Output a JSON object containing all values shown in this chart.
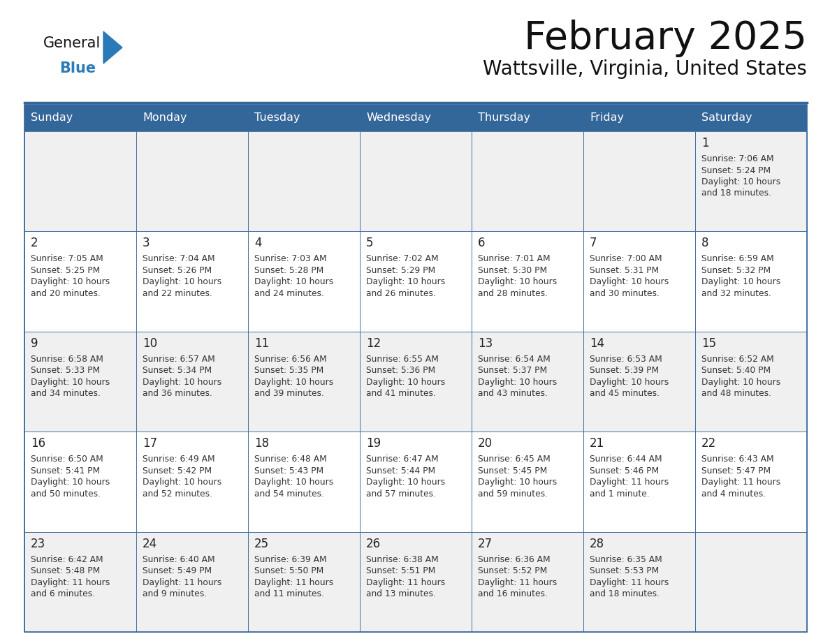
{
  "title": "February 2025",
  "subtitle": "Wattsville, Virginia, United States",
  "days_of_week": [
    "Sunday",
    "Monday",
    "Tuesday",
    "Wednesday",
    "Thursday",
    "Friday",
    "Saturday"
  ],
  "header_bg": "#336699",
  "header_text": "#ffffff",
  "row_bg_odd": "#f0f0f0",
  "row_bg_even": "#ffffff",
  "cell_border": "#336699",
  "day_number_color": "#222222",
  "info_text_color": "#333333",
  "title_color": "#111111",
  "subtitle_color": "#111111",
  "logo_general_color": "#111111",
  "logo_blue_color": "#2a7ab8",
  "weeks": [
    [
      {
        "num": "",
        "lines": []
      },
      {
        "num": "",
        "lines": []
      },
      {
        "num": "",
        "lines": []
      },
      {
        "num": "",
        "lines": []
      },
      {
        "num": "",
        "lines": []
      },
      {
        "num": "",
        "lines": []
      },
      {
        "num": "1",
        "lines": [
          "Sunrise: 7:06 AM",
          "Sunset: 5:24 PM",
          "Daylight: 10 hours",
          "and 18 minutes."
        ]
      }
    ],
    [
      {
        "num": "2",
        "lines": [
          "Sunrise: 7:05 AM",
          "Sunset: 5:25 PM",
          "Daylight: 10 hours",
          "and 20 minutes."
        ]
      },
      {
        "num": "3",
        "lines": [
          "Sunrise: 7:04 AM",
          "Sunset: 5:26 PM",
          "Daylight: 10 hours",
          "and 22 minutes."
        ]
      },
      {
        "num": "4",
        "lines": [
          "Sunrise: 7:03 AM",
          "Sunset: 5:28 PM",
          "Daylight: 10 hours",
          "and 24 minutes."
        ]
      },
      {
        "num": "5",
        "lines": [
          "Sunrise: 7:02 AM",
          "Sunset: 5:29 PM",
          "Daylight: 10 hours",
          "and 26 minutes."
        ]
      },
      {
        "num": "6",
        "lines": [
          "Sunrise: 7:01 AM",
          "Sunset: 5:30 PM",
          "Daylight: 10 hours",
          "and 28 minutes."
        ]
      },
      {
        "num": "7",
        "lines": [
          "Sunrise: 7:00 AM",
          "Sunset: 5:31 PM",
          "Daylight: 10 hours",
          "and 30 minutes."
        ]
      },
      {
        "num": "8",
        "lines": [
          "Sunrise: 6:59 AM",
          "Sunset: 5:32 PM",
          "Daylight: 10 hours",
          "and 32 minutes."
        ]
      }
    ],
    [
      {
        "num": "9",
        "lines": [
          "Sunrise: 6:58 AM",
          "Sunset: 5:33 PM",
          "Daylight: 10 hours",
          "and 34 minutes."
        ]
      },
      {
        "num": "10",
        "lines": [
          "Sunrise: 6:57 AM",
          "Sunset: 5:34 PM",
          "Daylight: 10 hours",
          "and 36 minutes."
        ]
      },
      {
        "num": "11",
        "lines": [
          "Sunrise: 6:56 AM",
          "Sunset: 5:35 PM",
          "Daylight: 10 hours",
          "and 39 minutes."
        ]
      },
      {
        "num": "12",
        "lines": [
          "Sunrise: 6:55 AM",
          "Sunset: 5:36 PM",
          "Daylight: 10 hours",
          "and 41 minutes."
        ]
      },
      {
        "num": "13",
        "lines": [
          "Sunrise: 6:54 AM",
          "Sunset: 5:37 PM",
          "Daylight: 10 hours",
          "and 43 minutes."
        ]
      },
      {
        "num": "14",
        "lines": [
          "Sunrise: 6:53 AM",
          "Sunset: 5:39 PM",
          "Daylight: 10 hours",
          "and 45 minutes."
        ]
      },
      {
        "num": "15",
        "lines": [
          "Sunrise: 6:52 AM",
          "Sunset: 5:40 PM",
          "Daylight: 10 hours",
          "and 48 minutes."
        ]
      }
    ],
    [
      {
        "num": "16",
        "lines": [
          "Sunrise: 6:50 AM",
          "Sunset: 5:41 PM",
          "Daylight: 10 hours",
          "and 50 minutes."
        ]
      },
      {
        "num": "17",
        "lines": [
          "Sunrise: 6:49 AM",
          "Sunset: 5:42 PM",
          "Daylight: 10 hours",
          "and 52 minutes."
        ]
      },
      {
        "num": "18",
        "lines": [
          "Sunrise: 6:48 AM",
          "Sunset: 5:43 PM",
          "Daylight: 10 hours",
          "and 54 minutes."
        ]
      },
      {
        "num": "19",
        "lines": [
          "Sunrise: 6:47 AM",
          "Sunset: 5:44 PM",
          "Daylight: 10 hours",
          "and 57 minutes."
        ]
      },
      {
        "num": "20",
        "lines": [
          "Sunrise: 6:45 AM",
          "Sunset: 5:45 PM",
          "Daylight: 10 hours",
          "and 59 minutes."
        ]
      },
      {
        "num": "21",
        "lines": [
          "Sunrise: 6:44 AM",
          "Sunset: 5:46 PM",
          "Daylight: 11 hours",
          "and 1 minute."
        ]
      },
      {
        "num": "22",
        "lines": [
          "Sunrise: 6:43 AM",
          "Sunset: 5:47 PM",
          "Daylight: 11 hours",
          "and 4 minutes."
        ]
      }
    ],
    [
      {
        "num": "23",
        "lines": [
          "Sunrise: 6:42 AM",
          "Sunset: 5:48 PM",
          "Daylight: 11 hours",
          "and 6 minutes."
        ]
      },
      {
        "num": "24",
        "lines": [
          "Sunrise: 6:40 AM",
          "Sunset: 5:49 PM",
          "Daylight: 11 hours",
          "and 9 minutes."
        ]
      },
      {
        "num": "25",
        "lines": [
          "Sunrise: 6:39 AM",
          "Sunset: 5:50 PM",
          "Daylight: 11 hours",
          "and 11 minutes."
        ]
      },
      {
        "num": "26",
        "lines": [
          "Sunrise: 6:38 AM",
          "Sunset: 5:51 PM",
          "Daylight: 11 hours",
          "and 13 minutes."
        ]
      },
      {
        "num": "27",
        "lines": [
          "Sunrise: 6:36 AM",
          "Sunset: 5:52 PM",
          "Daylight: 11 hours",
          "and 16 minutes."
        ]
      },
      {
        "num": "28",
        "lines": [
          "Sunrise: 6:35 AM",
          "Sunset: 5:53 PM",
          "Daylight: 11 hours",
          "and 18 minutes."
        ]
      },
      {
        "num": "",
        "lines": []
      }
    ]
  ]
}
